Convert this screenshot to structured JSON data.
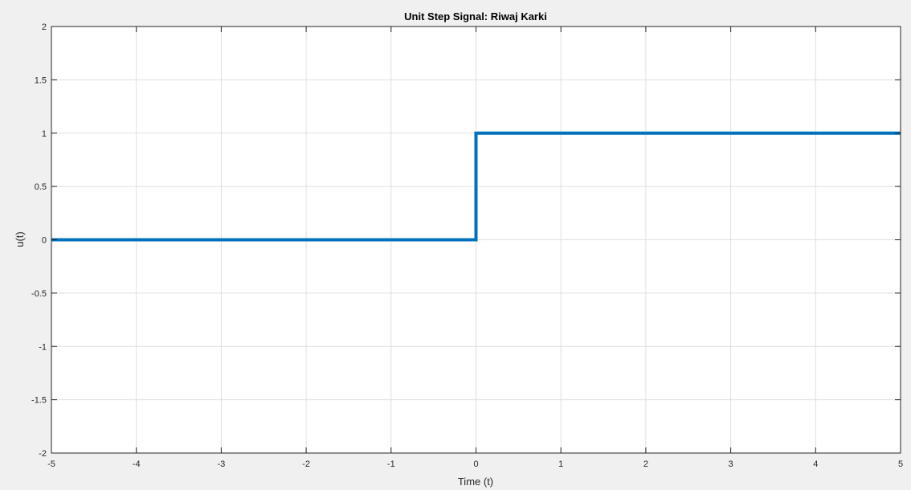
{
  "chart_data": {
    "type": "line",
    "title": "Unit Step Signal: Riwaj Karki",
    "xlabel": "Time (t)",
    "ylabel": "u(t)",
    "xlim": [
      -5,
      5
    ],
    "ylim": [
      -2,
      2
    ],
    "xticks": [
      -5,
      -4,
      -3,
      -2,
      -1,
      0,
      1,
      2,
      3,
      4,
      5
    ],
    "yticks": [
      -2,
      -1.5,
      -1,
      -0.5,
      0,
      0.5,
      1,
      1.5,
      2
    ],
    "xtick_labels": [
      "-5",
      "-4",
      "-3",
      "-2",
      "-1",
      "0",
      "1",
      "2",
      "3",
      "4",
      "5"
    ],
    "ytick_labels": [
      "-2",
      "-1.5",
      "-1",
      "-0.5",
      "0",
      "0.5",
      "1",
      "1.5",
      "2"
    ],
    "grid": true,
    "series": [
      {
        "color": "#0072bd",
        "x": [
          -5,
          0,
          0,
          5
        ],
        "y": [
          0,
          0,
          1,
          1
        ]
      }
    ]
  }
}
